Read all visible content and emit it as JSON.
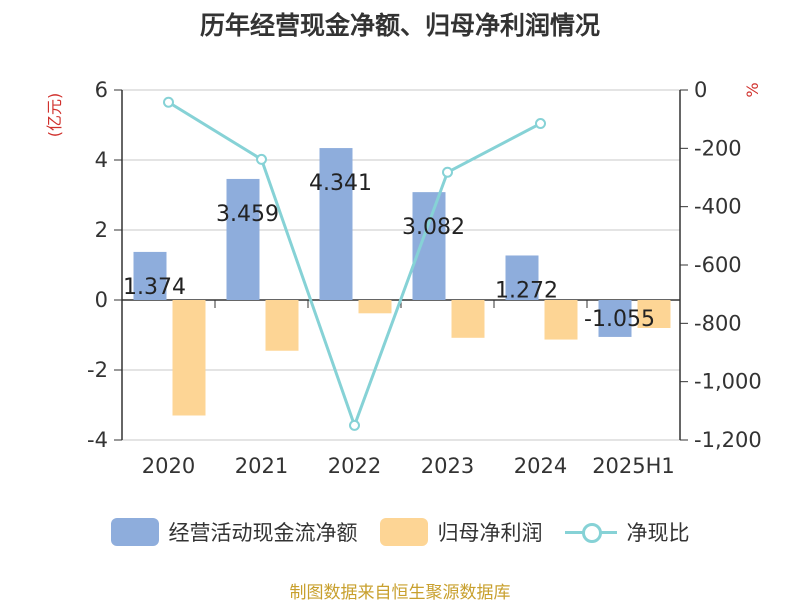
{
  "title": "历年经营现金净额、归母净利润情况",
  "source": "制图数据来自恒生聚源数据库",
  "chart_data": {
    "type": "bar",
    "categories": [
      "2020",
      "2021",
      "2022",
      "2023",
      "2024",
      "2025H1"
    ],
    "y_left": {
      "unit_label": "(亿元)",
      "range": [
        -4,
        6
      ],
      "ticks": [
        "-4",
        "-2",
        "0",
        "2",
        "4",
        "6"
      ]
    },
    "y_right": {
      "unit_label": "%",
      "range": [
        -1200,
        0
      ],
      "ticks": [
        "-1,200",
        "-1,000",
        "-800",
        "-600",
        "-400",
        "-200",
        "0"
      ]
    },
    "series": [
      {
        "name": "经营活动现金流净额",
        "type": "bar",
        "axis": "left",
        "color": "#8eaddc",
        "values": [
          1.374,
          3.459,
          4.341,
          3.082,
          1.272,
          -1.055
        ],
        "labels": [
          "1.374",
          "3.459",
          "4.341",
          "3.082",
          "1.272",
          "-1.055"
        ]
      },
      {
        "name": "归母净利润",
        "type": "bar",
        "axis": "left",
        "color": "#fdd595",
        "values": [
          -3.3,
          -1.45,
          -0.38,
          -1.08,
          -1.13,
          -0.8
        ]
      },
      {
        "name": "净现比",
        "type": "line",
        "axis": "right",
        "color": "#86d2d6",
        "values": [
          -42,
          -238,
          -1150,
          -282,
          null,
          -115
        ]
      }
    ],
    "grid": true,
    "legend_position": "bottom"
  }
}
